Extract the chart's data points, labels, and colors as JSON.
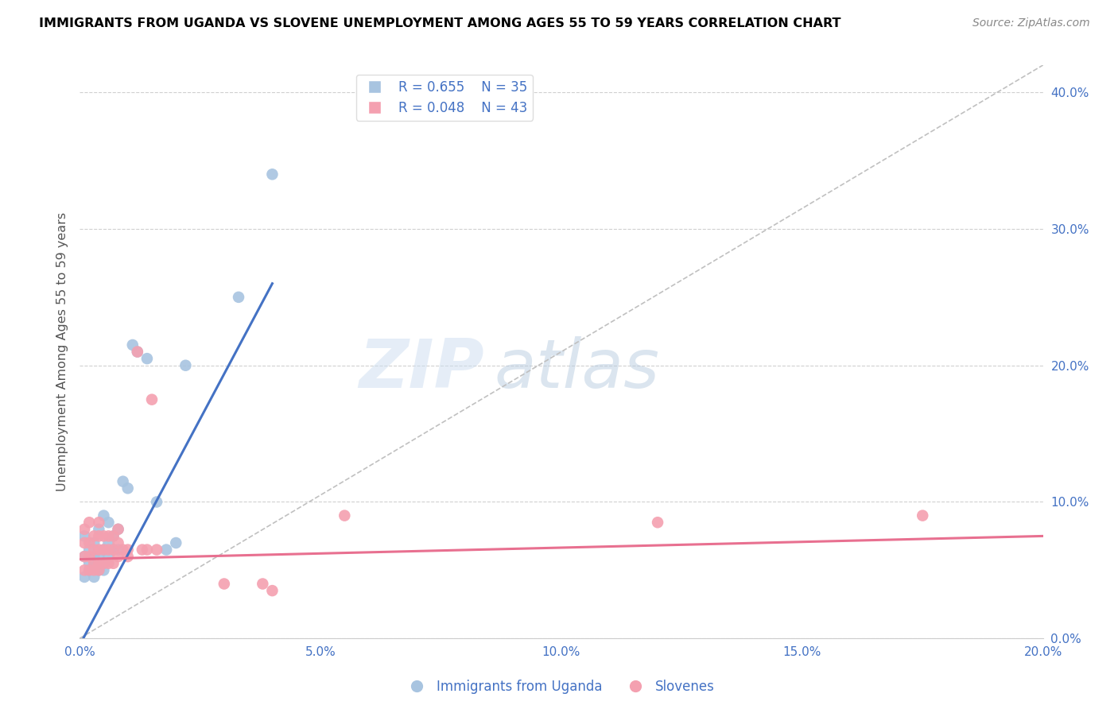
{
  "title": "IMMIGRANTS FROM UGANDA VS SLOVENE UNEMPLOYMENT AMONG AGES 55 TO 59 YEARS CORRELATION CHART",
  "source": "Source: ZipAtlas.com",
  "ylabel": "Unemployment Among Ages 55 to 59 years",
  "xlim": [
    0.0,
    0.2
  ],
  "ylim": [
    0.0,
    0.42
  ],
  "yticks": [
    0.0,
    0.1,
    0.2,
    0.3,
    0.4
  ],
  "xticks": [
    0.0,
    0.05,
    0.1,
    0.15,
    0.2
  ],
  "uganda_R": 0.655,
  "uganda_N": 35,
  "slovene_R": 0.048,
  "slovene_N": 43,
  "uganda_color": "#a8c4e0",
  "slovene_color": "#f4a0b0",
  "uganda_line_color": "#4472c4",
  "slovene_line_color": "#e87090",
  "diagonal_color": "#c0c0c0",
  "legend_text_color": "#4472c4",
  "watermark_zip": "ZIP",
  "watermark_atlas": "atlas",
  "uganda_x": [
    0.001,
    0.001,
    0.001,
    0.002,
    0.002,
    0.002,
    0.003,
    0.003,
    0.003,
    0.003,
    0.004,
    0.004,
    0.004,
    0.005,
    0.005,
    0.005,
    0.005,
    0.006,
    0.006,
    0.006,
    0.007,
    0.007,
    0.008,
    0.008,
    0.009,
    0.01,
    0.011,
    0.012,
    0.014,
    0.016,
    0.018,
    0.02,
    0.022,
    0.033,
    0.04
  ],
  "uganda_y": [
    0.045,
    0.06,
    0.075,
    0.05,
    0.055,
    0.065,
    0.045,
    0.055,
    0.06,
    0.07,
    0.05,
    0.06,
    0.08,
    0.05,
    0.055,
    0.065,
    0.09,
    0.06,
    0.07,
    0.085,
    0.065,
    0.075,
    0.065,
    0.08,
    0.115,
    0.11,
    0.215,
    0.21,
    0.205,
    0.1,
    0.065,
    0.07,
    0.2,
    0.25,
    0.34
  ],
  "slovene_x": [
    0.001,
    0.001,
    0.001,
    0.001,
    0.002,
    0.002,
    0.002,
    0.002,
    0.003,
    0.003,
    0.003,
    0.003,
    0.004,
    0.004,
    0.004,
    0.004,
    0.004,
    0.005,
    0.005,
    0.005,
    0.006,
    0.006,
    0.006,
    0.007,
    0.007,
    0.007,
    0.008,
    0.008,
    0.008,
    0.009,
    0.01,
    0.01,
    0.012,
    0.013,
    0.014,
    0.015,
    0.016,
    0.03,
    0.038,
    0.04,
    0.055,
    0.12,
    0.175
  ],
  "slovene_y": [
    0.05,
    0.06,
    0.07,
    0.08,
    0.05,
    0.06,
    0.07,
    0.085,
    0.05,
    0.055,
    0.065,
    0.075,
    0.05,
    0.055,
    0.065,
    0.075,
    0.085,
    0.055,
    0.065,
    0.075,
    0.055,
    0.065,
    0.075,
    0.055,
    0.065,
    0.075,
    0.06,
    0.07,
    0.08,
    0.065,
    0.06,
    0.065,
    0.21,
    0.065,
    0.065,
    0.175,
    0.065,
    0.04,
    0.04,
    0.035,
    0.09,
    0.085,
    0.09
  ],
  "uganda_line_x0": 0.0,
  "uganda_line_y0": -0.005,
  "uganda_line_x1": 0.04,
  "uganda_line_y1": 0.26,
  "slovene_line_x0": 0.0,
  "slovene_line_y0": 0.058,
  "slovene_line_x1": 0.2,
  "slovene_line_y1": 0.075
}
